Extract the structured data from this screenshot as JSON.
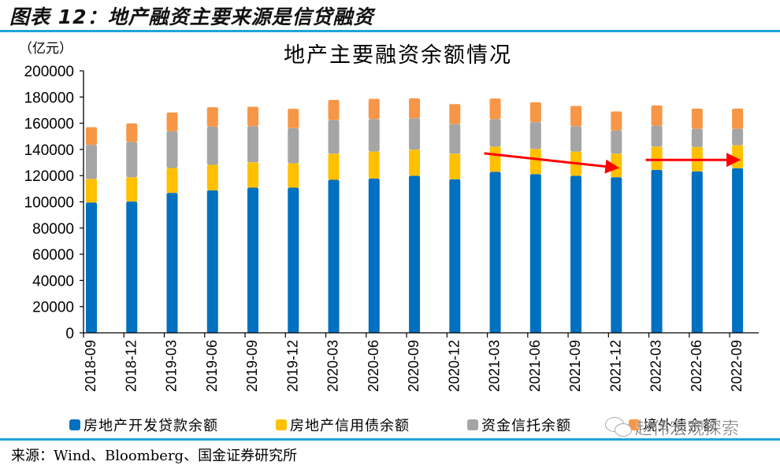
{
  "figure": {
    "label": "图表 12：地产融资主要来源是信贷融资",
    "source": "来源：Wind、Bloomberg、国金证券研究所",
    "watermark": "赵伟宏观探索",
    "watermark_icon": "wechat-icon"
  },
  "chart_data": {
    "type": "bar",
    "stacked": true,
    "title": "地产主要融资余额情况",
    "ylabel": "（亿元）",
    "xlabel": "",
    "ylim": [
      0,
      200000
    ],
    "yticks": [
      0,
      20000,
      40000,
      60000,
      80000,
      100000,
      120000,
      140000,
      160000,
      180000,
      200000
    ],
    "grid": false,
    "legend_position": "bottom",
    "categories": [
      "2018-09",
      "2018-12",
      "2019-03",
      "2019-06",
      "2019-09",
      "2019-12",
      "2020-03",
      "2020-06",
      "2020-09",
      "2020-12",
      "2021-03",
      "2021-06",
      "2021-09",
      "2021-12",
      "2022-03",
      "2022-06",
      "2022-09"
    ],
    "series": [
      {
        "name": "房地产开发贷款余额",
        "color": "#0070c0",
        "values": [
          99500,
          100200,
          106800,
          108800,
          110800,
          110800,
          116800,
          117800,
          119800,
          117200,
          122800,
          121200,
          119800,
          118800,
          124400,
          123200,
          125600
        ]
      },
      {
        "name": "房地产信用债余额",
        "color": "#ffc000",
        "values": [
          18000,
          18600,
          19000,
          19400,
          19400,
          18600,
          20000,
          20600,
          20000,
          19600,
          19400,
          19200,
          18600,
          18000,
          17800,
          18600,
          17600
        ]
      },
      {
        "name": "资金信托余额",
        "color": "#a5a5a5",
        "values": [
          26000,
          27000,
          28000,
          29200,
          27600,
          26800,
          25600,
          24800,
          24000,
          22600,
          21000,
          20400,
          19400,
          17600,
          16000,
          14000,
          12600
        ]
      },
      {
        "name": "境外债余额",
        "color": "#f79646",
        "values": [
          13500,
          14000,
          14400,
          14800,
          14800,
          14800,
          15400,
          15400,
          15200,
          15200,
          15600,
          15200,
          15400,
          14600,
          15400,
          15400,
          15400
        ]
      }
    ],
    "annotations": [
      {
        "type": "arrow",
        "color": "#ff0000",
        "from": {
          "category": "2021-03",
          "value": 137000
        },
        "to": {
          "category": "2021-12",
          "value": 126000
        },
        "meaning": "declining trend"
      },
      {
        "type": "arrow",
        "color": "#ff0000",
        "from": {
          "category": "2022-03",
          "value": 132000
        },
        "to": {
          "category": "2022-09",
          "value": 132000
        },
        "meaning": "flat trend"
      }
    ]
  }
}
